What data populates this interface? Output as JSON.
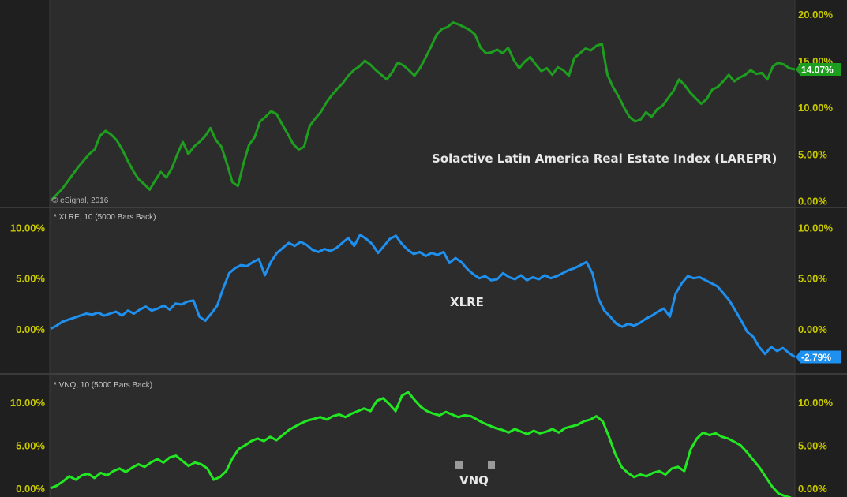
{
  "watermark": "© eSignal, 2016",
  "panes": [
    {
      "name": "larepr",
      "header": "",
      "annotation": "Solactive Latin America Real Estate Index (LAREPR)",
      "color": "#1e9e1e",
      "last_label": "14.07%",
      "last_label_bg": "#1e9e1e",
      "last_label_fg": "#ffffff",
      "left_ticks": [],
      "right_ticks": [
        "20.00%",
        "15.00%",
        "10.00%",
        "5.00%",
        "0.00%"
      ]
    },
    {
      "name": "xlre",
      "header": "* XLRE, 10 (5000 Bars Back)",
      "annotation": "XLRE",
      "color": "#1e90ef",
      "last_label": "-2.79%",
      "last_label_bg": "#1e90ef",
      "last_label_fg": "#ffffff",
      "left_ticks": [
        "10.00%",
        "5.00%",
        "0.00%"
      ],
      "right_ticks": [
        "10.00%",
        "5.00%",
        "0.00%"
      ]
    },
    {
      "name": "vnq",
      "header": "* VNQ, 10 (5000 Bars Back)",
      "annotation": "VNQ",
      "color": "#22e822",
      "last_label": "",
      "left_ticks": [
        "10.00%",
        "5.00%",
        "0.00%"
      ],
      "right_ticks": [
        "10.00%",
        "5.00%",
        "0.00%"
      ]
    }
  ],
  "chart_data": [
    {
      "type": "line",
      "title": "Solactive Latin America Real Estate Index (LAREPR)",
      "ylim": [
        -0.2,
        21.0
      ],
      "y_ticks": [
        0,
        5,
        10,
        15,
        20
      ],
      "last_value": 14.07,
      "series": [
        {
          "values": [
            0,
            0.6,
            1.2,
            2.0,
            2.8,
            3.6,
            4.3,
            5.0,
            5.5,
            7.0,
            7.5,
            7.1,
            6.5,
            5.5,
            4.3,
            3.2,
            2.3,
            1.8,
            1.2,
            2.2,
            3.1,
            2.5,
            3.5,
            5.0,
            6.3,
            5.0,
            5.8,
            6.3,
            6.9,
            7.8,
            6.5,
            5.8,
            4.0,
            2.0,
            1.6,
            4.0,
            6.0,
            6.8,
            8.5,
            9.0,
            9.6,
            9.3,
            8.2,
            7.2,
            6.1,
            5.5,
            5.8,
            8.0,
            8.8,
            9.5,
            10.5,
            11.3,
            12.0,
            12.6,
            13.4,
            14.0,
            14.4,
            15.0,
            14.6,
            14.0,
            13.5,
            13.0,
            13.8,
            14.8,
            14.5,
            14.0,
            13.4,
            14.2,
            15.3,
            16.5,
            17.8,
            18.4,
            18.6,
            19.1,
            18.9,
            18.6,
            18.3,
            17.8,
            16.4,
            15.8,
            15.9,
            16.2,
            15.8,
            16.4,
            15.1,
            14.2,
            14.9,
            15.4,
            14.6,
            13.9,
            14.2,
            13.5,
            14.3,
            14.0,
            13.4,
            15.3,
            15.8,
            16.3,
            16.1,
            16.6,
            16.8,
            13.5,
            12.2,
            11.2,
            10.0,
            9.0,
            8.5,
            8.7,
            9.5,
            9.0,
            9.8,
            10.2,
            11.0,
            11.8,
            13.0,
            12.4,
            11.6,
            11.0,
            10.4,
            10.9,
            11.9,
            12.2,
            12.8,
            13.5,
            12.8,
            13.2,
            13.5,
            14.0,
            13.6,
            13.7,
            13.0,
            14.4,
            14.8,
            14.6,
            14.2,
            14.07
          ]
        }
      ]
    },
    {
      "type": "line",
      "title": "XLRE",
      "ylim": [
        -4.0,
        11.3
      ],
      "y_ticks": [
        0,
        5,
        10
      ],
      "last_value": -2.79,
      "series": [
        {
          "name": "XLRE",
          "values": [
            0,
            0.3,
            0.7,
            0.9,
            1.1,
            1.3,
            1.5,
            1.4,
            1.6,
            1.3,
            1.5,
            1.7,
            1.3,
            1.8,
            1.5,
            1.9,
            2.2,
            1.8,
            2.0,
            2.3,
            1.9,
            2.5,
            2.4,
            2.7,
            2.8,
            1.2,
            0.8,
            1.5,
            2.3,
            4.0,
            5.5,
            6.0,
            6.3,
            6.2,
            6.6,
            6.9,
            5.3,
            6.6,
            7.5,
            8.0,
            8.5,
            8.2,
            8.6,
            8.3,
            7.8,
            7.6,
            7.9,
            7.7,
            8.0,
            8.5,
            9.0,
            8.2,
            9.3,
            8.9,
            8.4,
            7.5,
            8.2,
            8.9,
            9.2,
            8.4,
            7.8,
            7.4,
            7.6,
            7.2,
            7.5,
            7.3,
            7.6,
            6.5,
            7.0,
            6.6,
            5.9,
            5.4,
            5.0,
            5.2,
            4.8,
            4.9,
            5.5,
            5.1,
            4.9,
            5.3,
            4.8,
            5.1,
            4.9,
            5.3,
            5.0,
            5.2,
            5.5,
            5.8,
            6.0,
            6.3,
            6.6,
            5.5,
            3.0,
            1.8,
            1.2,
            0.5,
            0.2,
            0.5,
            0.3,
            0.6,
            1.0,
            1.3,
            1.7,
            2.0,
            1.2,
            3.5,
            4.5,
            5.2,
            5.0,
            5.1,
            4.8,
            4.5,
            4.2,
            3.5,
            2.8,
            1.8,
            0.8,
            -0.3,
            -0.8,
            -1.8,
            -2.5,
            -1.8,
            -2.2,
            -1.9,
            -2.4,
            -2.79
          ]
        }
      ]
    },
    {
      "type": "line",
      "title": "VNQ",
      "ylim": [
        -1.2,
        12.5
      ],
      "y_ticks": [
        0,
        5,
        10
      ],
      "series": [
        {
          "name": "VNQ",
          "values": [
            0,
            0.3,
            0.8,
            1.4,
            1.0,
            1.5,
            1.7,
            1.2,
            1.8,
            1.5,
            2.0,
            2.3,
            1.9,
            2.4,
            2.8,
            2.5,
            3.0,
            3.4,
            3.0,
            3.6,
            3.8,
            3.2,
            2.6,
            3.0,
            2.8,
            2.3,
            1.0,
            1.3,
            2.0,
            3.5,
            4.6,
            5.0,
            5.5,
            5.8,
            5.5,
            6.0,
            5.6,
            6.2,
            6.8,
            7.2,
            7.6,
            7.9,
            8.1,
            8.3,
            8.0,
            8.4,
            8.6,
            8.3,
            8.7,
            9.0,
            9.3,
            9.0,
            10.2,
            10.5,
            9.8,
            9.0,
            10.8,
            11.2,
            10.3,
            9.5,
            9.0,
            8.7,
            8.5,
            8.9,
            8.6,
            8.3,
            8.5,
            8.4,
            8.0,
            7.6,
            7.3,
            7.0,
            6.8,
            6.5,
            6.9,
            6.6,
            6.3,
            6.7,
            6.4,
            6.6,
            6.9,
            6.5,
            7.0,
            7.2,
            7.4,
            7.8,
            8.0,
            8.4,
            7.8,
            6.0,
            4.0,
            2.5,
            1.8,
            1.3,
            1.6,
            1.4,
            1.8,
            2.0,
            1.6,
            2.3,
            2.5,
            2.0,
            4.5,
            5.8,
            6.5,
            6.2,
            6.4,
            6.0,
            5.8,
            5.4,
            5.0,
            4.2,
            3.3,
            2.4,
            1.3,
            0.2,
            -0.6,
            -0.9,
            -1.1
          ]
        }
      ]
    }
  ]
}
